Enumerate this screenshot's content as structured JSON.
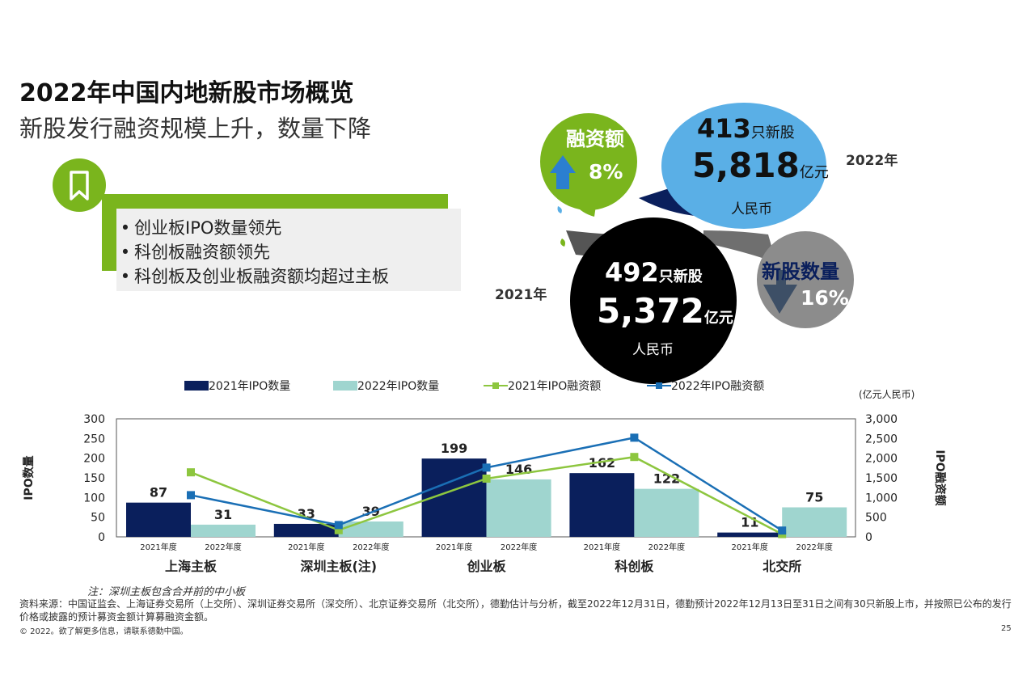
{
  "title": "2022年中国内地新股市场概览",
  "subtitle": "新股发行融资规模上升，数量下降",
  "highlights": {
    "icon": "bookmark-icon",
    "items": [
      "创业板IPO数量领先",
      "科创板融资额领先",
      "科创板及创业板融资额均超过主板"
    ]
  },
  "bubbles": {
    "y2022": {
      "year_label": "2022年",
      "count": "413",
      "count_unit": "只新股",
      "amount": "5,818",
      "amount_unit": "亿元",
      "currency": "人民币"
    },
    "y2021": {
      "year_label": "2021年",
      "count": "492",
      "count_unit": "只新股",
      "amount": "5,372",
      "amount_unit": "亿元",
      "currency": "人民币"
    },
    "financing": {
      "label": "融资额",
      "change": "8%",
      "direction": "up"
    },
    "ipo_count": {
      "label": "新股数量",
      "change": "16%",
      "direction": "down"
    }
  },
  "colors": {
    "green": "#7ab51d",
    "navy": "#0a1f5c",
    "teal": "#9fd5cf",
    "light_green": "#8dc63f",
    "blue": "#1a6fb5",
    "sky": "#5aafe6",
    "grey": "#8c8c8c",
    "arrow_blue": "#2b7fd0",
    "arrow_grey": "#3d4f66"
  },
  "chart_data": {
    "type": "bar",
    "categories": [
      "上海主板",
      "深圳主板(注)",
      "创业板",
      "科创板",
      "北交所"
    ],
    "sub_labels": [
      "2021年度",
      "2022年度"
    ],
    "left_axis": {
      "label": "IPO数量",
      "ylim": [
        0,
        300
      ],
      "ticks": [
        "0",
        "50",
        "100",
        "150",
        "200",
        "250",
        "300"
      ]
    },
    "right_axis": {
      "label": "IPO融资额",
      "unit": "(亿元人民币)",
      "ylim": [
        0,
        3000
      ],
      "ticks": [
        "0",
        "500",
        "1,000",
        "1,500",
        "2,000",
        "2,500",
        "3,000"
      ]
    },
    "series": [
      {
        "name": "2021年IPO数量",
        "kind": "bar",
        "axis": "left",
        "values": [
          87,
          33,
          199,
          162,
          11
        ],
        "labels": [
          "87",
          "33",
          "199",
          "162",
          "11"
        ]
      },
      {
        "name": "2022年IPO数量",
        "kind": "bar",
        "axis": "left",
        "values": [
          31,
          39,
          146,
          122,
          75
        ],
        "labels": [
          "31",
          "39",
          "146",
          "122",
          "75"
        ]
      },
      {
        "name": "2021年IPO融资额",
        "kind": "line",
        "axis": "right",
        "values": [
          1640,
          170,
          1480,
          2030,
          70
        ]
      },
      {
        "name": "2022年IPO融资额",
        "kind": "line",
        "axis": "right",
        "values": [
          1060,
          300,
          1760,
          2520,
          160
        ]
      }
    ],
    "grid": false,
    "legend": "top"
  },
  "footer": {
    "note": "注：深圳主板包含合并前的中小板",
    "source": "资料来源：中国证监会、上海证券交易所（上交所）、深圳证券交易所（深交所）、北京证券交易所（北交所），德勤估计与分析，截至2022年12月31日，德勤预计2022年12月13日至31日之间有30只新股上市，并按照已公布的发行价格或披露的预计募资金额计算募融资金额。",
    "copyright": "© 2022。欲了解更多信息，请联系德勤中国。",
    "page": "25"
  }
}
